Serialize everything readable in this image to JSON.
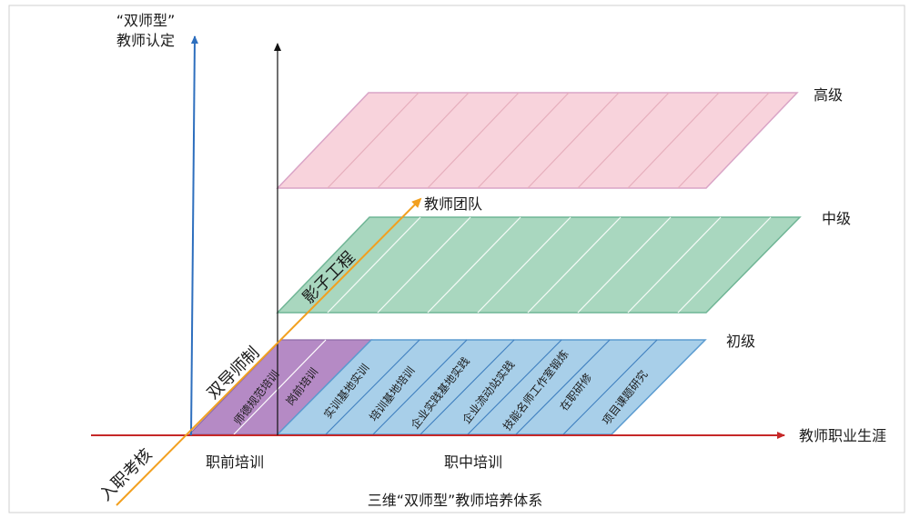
{
  "y_axis_label": [
    "“双师型”",
    "教师认定"
  ],
  "levels": {
    "high": "高级",
    "middle": "中级",
    "primary": "初级"
  },
  "x_axis_label": "教师职业生涯",
  "diagonal_axis": {
    "end_label": "教师团队",
    "labels": [
      "影子工程",
      "双导师制",
      "入职考核"
    ]
  },
  "stages": {
    "pre_service": "职前培训",
    "in_service": "职中培训"
  },
  "pre_service_items": [
    "师德规范培训",
    "岗前培训"
  ],
  "in_service_items": [
    "实训基地实训",
    "培训基地培训",
    "企业实践基地实践",
    "企业流动站实践",
    "技能名师工作室锻炼",
    "在职研修",
    "项目课题研究"
  ],
  "caption": "三维“双师型”教师培养体系",
  "colors": {
    "high_plane": "#f8d3dc",
    "middle_plane": "#a9d7bf",
    "primary_plane": "#a8cfe9",
    "pre_service_block": "#b58ac5",
    "x_axis": "#c62828",
    "y_axis": "#2e6fbe",
    "diagonal": "#f2a01f"
  }
}
